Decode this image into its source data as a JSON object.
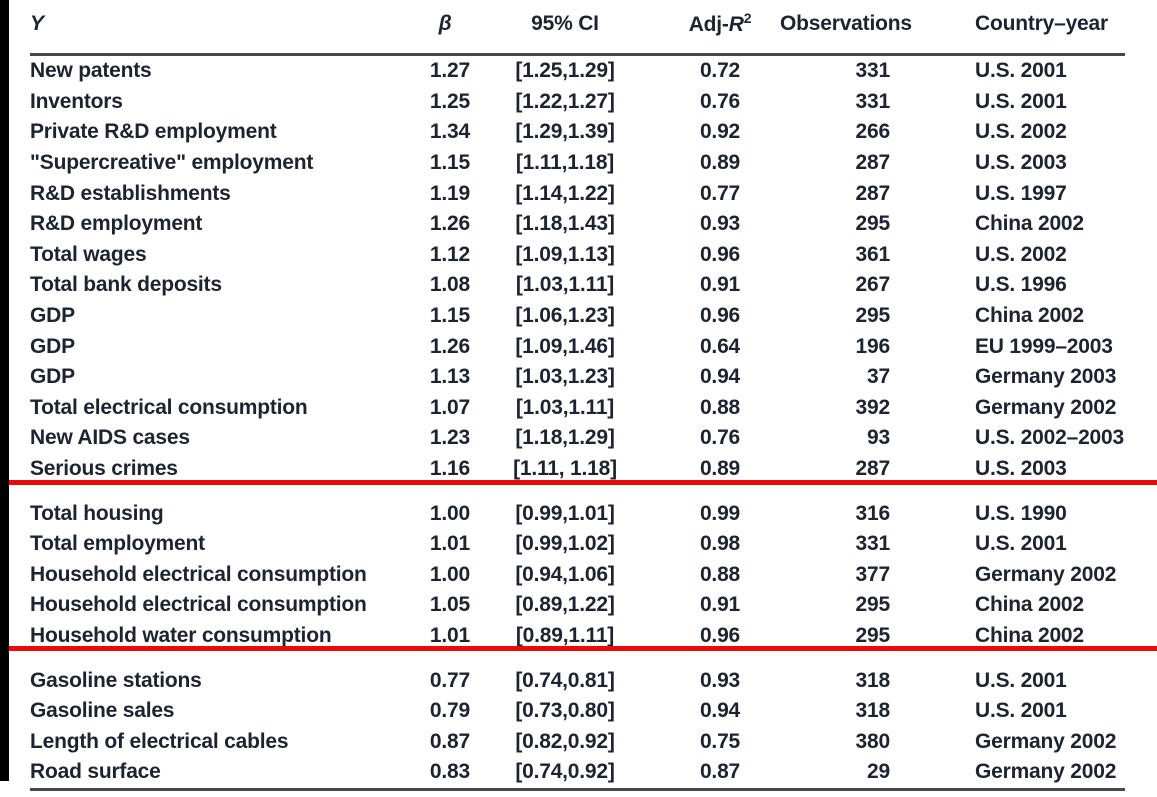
{
  "table": {
    "header": {
      "y": "Y",
      "beta": "β",
      "ci": "95% CI",
      "adj_r2_prefix": "Adj-",
      "adj_r2_r": "R",
      "adj_r2_sup": "2",
      "observations": "Observations",
      "country_year": "Country–year"
    },
    "sections": [
      {
        "rows": [
          {
            "y": "New patents",
            "beta": "1.27",
            "ci": "[1.25,1.29]",
            "adj_r2": "0.72",
            "obs": "331",
            "country_year": "U.S. 2001"
          },
          {
            "y": "Inventors",
            "beta": "1.25",
            "ci": "[1.22,1.27]",
            "adj_r2": "0.76",
            "obs": "331",
            "country_year": "U.S. 2001"
          },
          {
            "y": "Private R&D employment",
            "beta": "1.34",
            "ci": "[1.29,1.39]",
            "adj_r2": "0.92",
            "obs": "266",
            "country_year": "U.S. 2002"
          },
          {
            "y": "\"Supercreative\" employment",
            "beta": "1.15",
            "ci": "[1.11,1.18]",
            "adj_r2": "0.89",
            "obs": "287",
            "country_year": "U.S. 2003"
          },
          {
            "y": "R&D establishments",
            "beta": "1.19",
            "ci": "[1.14,1.22]",
            "adj_r2": "0.77",
            "obs": "287",
            "country_year": "U.S. 1997"
          },
          {
            "y": "R&D employment",
            "beta": "1.26",
            "ci": "[1.18,1.43]",
            "adj_r2": "0.93",
            "obs": "295",
            "country_year": "China 2002"
          },
          {
            "y": "Total wages",
            "beta": "1.12",
            "ci": "[1.09,1.13]",
            "adj_r2": "0.96",
            "obs": "361",
            "country_year": "U.S. 2002"
          },
          {
            "y": "Total bank deposits",
            "beta": "1.08",
            "ci": "[1.03,1.11]",
            "adj_r2": "0.91",
            "obs": "267",
            "country_year": "U.S. 1996"
          },
          {
            "y": "GDP",
            "beta": "1.15",
            "ci": "[1.06,1.23]",
            "adj_r2": "0.96",
            "obs": "295",
            "country_year": "China 2002"
          },
          {
            "y": "GDP",
            "beta": "1.26",
            "ci": "[1.09,1.46]",
            "adj_r2": "0.64",
            "obs": "196",
            "country_year": "EU 1999–2003"
          },
          {
            "y": "GDP",
            "beta": "1.13",
            "ci": "[1.03,1.23]",
            "adj_r2": "0.94",
            "obs": "37",
            "country_year": "Germany 2003"
          },
          {
            "y": "Total electrical consumption",
            "beta": "1.07",
            "ci": "[1.03,1.11]",
            "adj_r2": "0.88",
            "obs": "392",
            "country_year": "Germany 2002"
          },
          {
            "y": "New AIDS cases",
            "beta": "1.23",
            "ci": "[1.18,1.29]",
            "adj_r2": "0.76",
            "obs": "93",
            "country_year": "U.S. 2002–2003"
          },
          {
            "y": "Serious crimes",
            "beta": "1.16",
            "ci": "[1.11, 1.18]",
            "adj_r2": "0.89",
            "obs": "287",
            "country_year": "U.S. 2003"
          }
        ]
      },
      {
        "rows": [
          {
            "y": "Total housing",
            "beta": "1.00",
            "ci": "[0.99,1.01]",
            "adj_r2": "0.99",
            "obs": "316",
            "country_year": "U.S. 1990"
          },
          {
            "y": "Total employment",
            "beta": "1.01",
            "ci": "[0.99,1.02]",
            "adj_r2": "0.98",
            "obs": "331",
            "country_year": "U.S. 2001"
          },
          {
            "y": "Household electrical consumption",
            "beta": "1.00",
            "ci": "[0.94,1.06]",
            "adj_r2": "0.88",
            "obs": "377",
            "country_year": "Germany 2002"
          },
          {
            "y": "Household electrical consumption",
            "beta": "1.05",
            "ci": "[0.89,1.22]",
            "adj_r2": "0.91",
            "obs": "295",
            "country_year": "China 2002"
          },
          {
            "y": "Household water consumption",
            "beta": "1.01",
            "ci": "[0.89,1.11]",
            "adj_r2": "0.96",
            "obs": "295",
            "country_year": "China 2002"
          }
        ]
      },
      {
        "rows": [
          {
            "y": "Gasoline stations",
            "beta": "0.77",
            "ci": "[0.74,0.81]",
            "adj_r2": "0.93",
            "obs": "318",
            "country_year": "U.S. 2001"
          },
          {
            "y": "Gasoline sales",
            "beta": "0.79",
            "ci": "[0.73,0.80]",
            "adj_r2": "0.94",
            "obs": "318",
            "country_year": "U.S. 2001"
          },
          {
            "y": "Length of electrical cables",
            "beta": "0.87",
            "ci": "[0.82,0.92]",
            "adj_r2": "0.75",
            "obs": "380",
            "country_year": "Germany 2002"
          },
          {
            "y": "Road surface",
            "beta": "0.83",
            "ci": "[0.74,0.92]",
            "adj_r2": "0.87",
            "obs": "29",
            "country_year": "Germany 2002"
          }
        ]
      }
    ]
  },
  "colors": {
    "divider_red": "#ea0b0b",
    "text": "#1d2431",
    "rule_dark": "#484848",
    "edge_black": "#000000",
    "background": "#ffffff"
  }
}
